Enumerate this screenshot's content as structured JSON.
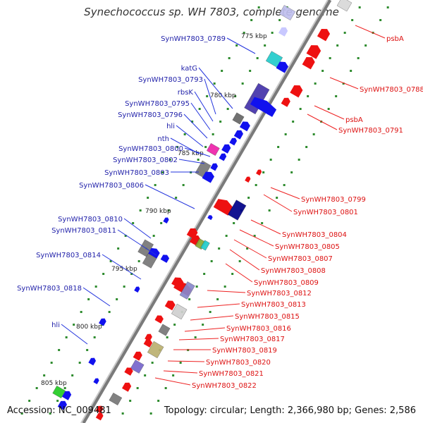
{
  "title": "Synechococcus sp. WH 7803, complete genome",
  "footer": {
    "accession": "Accession: NC_009481",
    "topology": "Topology: circular; Length: 2,366,980 bp; Genes: 2,586"
  },
  "colors": {
    "forward_label": "#2222aa",
    "reverse_label": "#dd1111",
    "backbone": "#8c8c8c",
    "tick": "#2e8b2e"
  },
  "scale_labels": [
    "775 kbp",
    "780 kbp",
    "785 kbp",
    "790 kbp",
    "795 kbp",
    "800 kbp",
    "805 kbp"
  ],
  "left_labels": [
    "SynWH7803_0789",
    "katG",
    "SynWH7803_0793",
    "rbsK",
    "SynWH7803_0795",
    "SynWH7803_0796",
    "hli",
    "nth",
    "SynWH7803_0800",
    "SynWH7803_0802",
    "SynWH7803_0803",
    "SynWH7803_0806",
    "SynWH7803_0810",
    "SynWH7803_0811",
    "SynWH7803_0814",
    "SynWH7803_0818",
    "hli"
  ],
  "right_labels": [
    "psbA",
    "SynWH7803_0788",
    "psbA",
    "SynWH7803_0791",
    "SynWH7803_0799",
    "SynWH7803_0801",
    "SynWH7803_0804",
    "SynWH7803_0805",
    "SynWH7803_0807",
    "SynWH7803_0808",
    "SynWH7803_0809",
    "SynWH7803_0812",
    "SynWH7803_0813",
    "SynWH7803_0815",
    "SynWH7803_0816",
    "SynWH7803_0817",
    "SynWH7803_0819",
    "SynWH7803_0820",
    "SynWH7803_0821",
    "SynWH7803_0822"
  ]
}
